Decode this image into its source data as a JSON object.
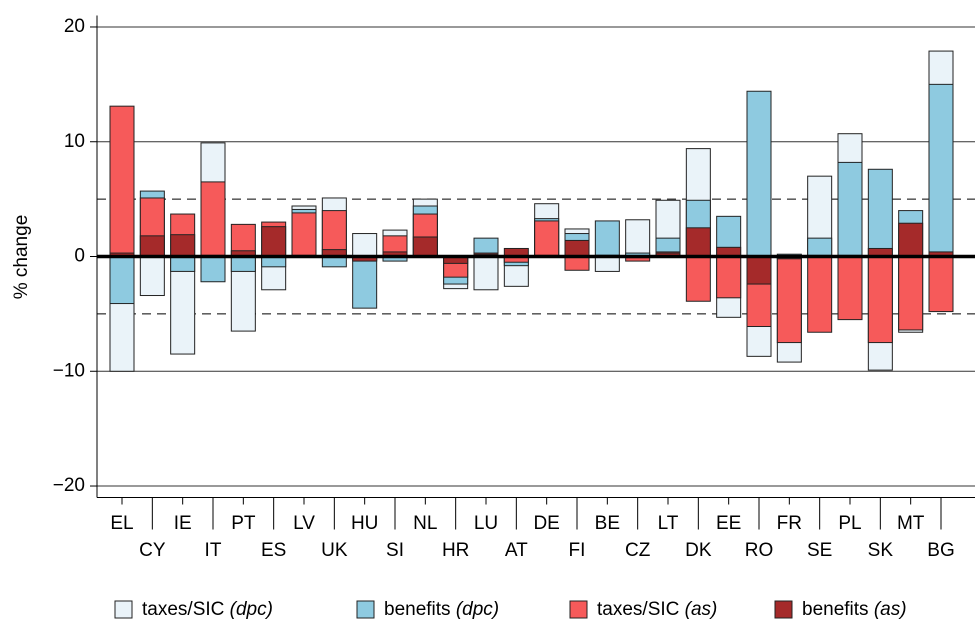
{
  "chart_data": {
    "type": "bar",
    "y_label": "% change",
    "categories": [
      "EL",
      "CY",
      "IE",
      "IT",
      "PT",
      "ES",
      "LV",
      "UK",
      "HU",
      "SI",
      "NL",
      "HR",
      "LU",
      "AT",
      "DE",
      "FI",
      "BE",
      "CZ",
      "LT",
      "DK",
      "EE",
      "RO",
      "FR",
      "SE",
      "PL",
      "SK",
      "MT",
      "BG"
    ],
    "series": [
      {
        "name": "taxes/SIC (dpc)",
        "color": "#eaf3f9",
        "values": [
          -10,
          -3.4,
          -8.5,
          9.9,
          -6.5,
          -2.9,
          4.4,
          5.1,
          2.0,
          2.3,
          5.0,
          -2.8,
          -2.9,
          -2.6,
          4.6,
          2.4,
          -1.3,
          3.2,
          4.9,
          9.4,
          -5.3,
          -8.7,
          -9.2,
          7.0,
          10.7,
          -9.9,
          -6.6,
          17.9
        ]
      },
      {
        "name": "benefits (dpc)",
        "color": "#8ecae0",
        "values": [
          -4.1,
          5.7,
          -1.3,
          -2.2,
          -1.3,
          -0.9,
          4.1,
          -0.9,
          -4.5,
          -0.4,
          4.4,
          -2.4,
          1.6,
          -0.8,
          3.3,
          2.0,
          3.1,
          0.3,
          1.6,
          4.9,
          3.5,
          14.4,
          0.2,
          1.6,
          8.2,
          7.6,
          4.0,
          15.0
        ]
      },
      {
        "name": "taxes/SIC (as)",
        "color": "#f65a5a",
        "values": [
          13.1,
          5.1,
          3.7,
          6.5,
          2.8,
          3.0,
          3.8,
          4.0,
          -0.3,
          1.8,
          3.7,
          -1.8,
          0.3,
          -0.5,
          3.1,
          -1.2,
          0.1,
          -0.4,
          0.4,
          -3.9,
          -3.6,
          -6.1,
          -7.5,
          -6.6,
          -5.5,
          -7.5,
          -6.4,
          -4.8
        ]
      },
      {
        "name": "benefits (as)",
        "color": "#a52a2a",
        "values": [
          0.3,
          1.8,
          1.9,
          0.1,
          0.5,
          2.6,
          0.1,
          0.6,
          -0.4,
          0.4,
          1.7,
          -0.6,
          0.2,
          0.7,
          0.1,
          1.4,
          0.1,
          -0.1,
          0.3,
          2.5,
          0.8,
          -2.4,
          -0.2,
          0.1,
          0.1,
          0.7,
          2.9,
          0.4
        ]
      }
    ],
    "ylim": [
      -21,
      21
    ],
    "yticks": [
      {
        "value": 20,
        "label": "20"
      },
      {
        "value": 10,
        "label": "10"
      },
      {
        "value": 0,
        "label": "0"
      },
      {
        "value": -10,
        "label": "−10"
      },
      {
        "value": -20,
        "label": "−20"
      }
    ],
    "reference_lines": [
      5,
      -5
    ],
    "grid": true
  }
}
